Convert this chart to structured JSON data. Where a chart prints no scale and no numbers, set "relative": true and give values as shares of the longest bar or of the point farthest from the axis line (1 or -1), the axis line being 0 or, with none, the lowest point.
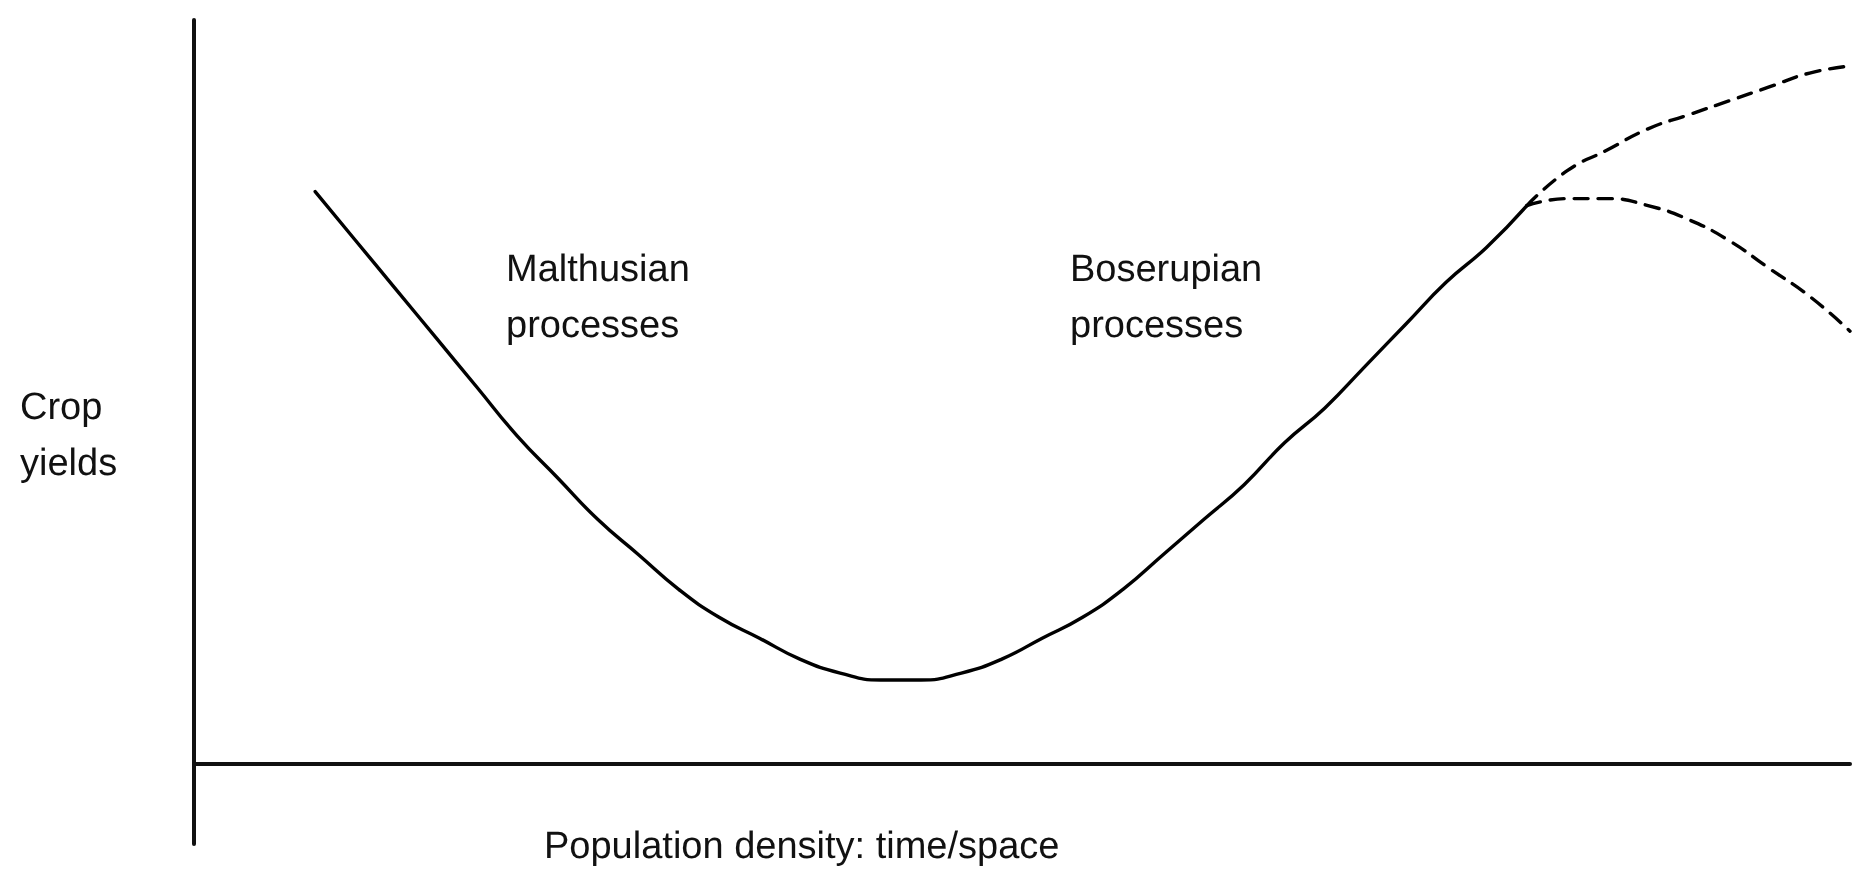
{
  "chart_data": {
    "type": "line",
    "relative": true,
    "marker": "none",
    "xlabel": "Population density: time/space",
    "ylabel": "Crop yields",
    "annotations": [
      "Malthusian processes",
      "Boserupian processes"
    ],
    "categories": [
      null,
      null,
      null,
      null,
      null,
      null,
      null,
      null,
      null,
      null,
      null,
      null,
      null,
      null,
      null,
      null,
      null,
      null,
      null,
      null,
      null,
      null,
      null,
      null,
      null,
      null,
      null,
      null,
      null,
      null,
      null,
      null,
      null,
      null,
      null,
      null,
      null,
      null,
      null,
      null,
      null,
      null
    ],
    "series": [
      {
        "color": "#000000",
        "line_style": "solid",
        "values": [
          null,
          null,
          null,
          0.82,
          0.75,
          0.68,
          0.61,
          0.54,
          0.47,
          0.41,
          0.35,
          0.3,
          0.25,
          0.21,
          0.18,
          0.15,
          0.13,
          0.12,
          0.12,
          0.13,
          0.15,
          0.18,
          0.21,
          0.25,
          0.3,
          0.35,
          0.4,
          0.46,
          0.51,
          0.57,
          0.63,
          0.69,
          0.74,
          0.8,
          null,
          null,
          null,
          null,
          null,
          null,
          null,
          null
        ]
      },
      {
        "color": "#000000",
        "line_style": "dashed",
        "values": [
          null,
          null,
          null,
          null,
          null,
          null,
          null,
          null,
          null,
          null,
          null,
          null,
          null,
          null,
          null,
          null,
          null,
          null,
          null,
          null,
          null,
          null,
          null,
          null,
          null,
          null,
          null,
          null,
          null,
          null,
          null,
          null,
          null,
          0.8,
          0.85,
          0.88,
          0.91,
          0.93,
          0.95,
          0.97,
          0.99,
          1
        ]
      },
      {
        "color": "#000000",
        "line_style": "dashed",
        "values": [
          null,
          null,
          null,
          null,
          null,
          null,
          null,
          null,
          null,
          null,
          null,
          null,
          null,
          null,
          null,
          null,
          null,
          null,
          null,
          null,
          null,
          null,
          null,
          null,
          null,
          null,
          null,
          null,
          null,
          null,
          null,
          null,
          null,
          0.8,
          0.81,
          0.81,
          0.8,
          0.78,
          0.75,
          0.71,
          0.67,
          0.62
        ]
      }
    ]
  }
}
